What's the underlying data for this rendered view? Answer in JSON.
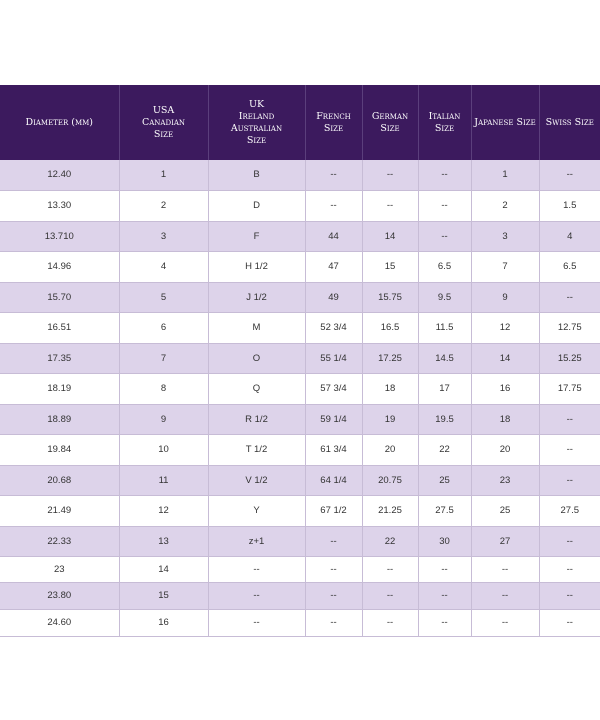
{
  "headers": [
    "Diameter (mm)",
    "USA\nCanadian\nSize",
    "UK\nIreland\nAustralian\nSize",
    "French\nSize",
    "German\nSize",
    "Italian\nSize",
    "Japanese Size",
    "Swiss Size"
  ],
  "rows": [
    [
      "12.40",
      "1",
      "B",
      "--",
      "--",
      "--",
      "1",
      "--"
    ],
    [
      "13.30",
      "2",
      "D",
      "--",
      "--",
      "--",
      "2",
      "1.5"
    ],
    [
      "13.710",
      "3",
      "F",
      "44",
      "14",
      "--",
      "3",
      "4"
    ],
    [
      "14.96",
      "4",
      "H 1/2",
      "47",
      "15",
      "6.5",
      "7",
      "6.5"
    ],
    [
      "15.70",
      "5",
      "J 1/2",
      "49",
      "15.75",
      "9.5",
      "9",
      "--"
    ],
    [
      "16.51",
      "6",
      "M",
      "52 3/4",
      "16.5",
      "11.5",
      "12",
      "12.75"
    ],
    [
      "17.35",
      "7",
      "O",
      "55 1/4",
      "17.25",
      "14.5",
      "14",
      "15.25"
    ],
    [
      "18.19",
      "8",
      "Q",
      "57 3/4",
      "18",
      "17",
      "16",
      "17.75"
    ],
    [
      "18.89",
      "9",
      "R 1/2",
      "59 1/4",
      "19",
      "19.5",
      "18",
      "--"
    ],
    [
      "19.84",
      "10",
      "T 1/2",
      "61 3/4",
      "20",
      "22",
      "20",
      "--"
    ],
    [
      "20.68",
      "11",
      "V 1/2",
      "64 1/4",
      "20.75",
      "25",
      "23",
      "--"
    ],
    [
      "21.49",
      "12",
      "Y",
      "67 1/2",
      "21.25",
      "27.5",
      "25",
      "27.5"
    ],
    [
      "22.33",
      "13",
      "z+1",
      "--",
      "22",
      "30",
      "27",
      "--"
    ],
    [
      "23",
      "14",
      "--",
      "--",
      "--",
      "--",
      "--",
      "--"
    ],
    [
      "23.80",
      "15",
      "--",
      "--",
      "--",
      "--",
      "--",
      "--"
    ],
    [
      "24.60",
      "16",
      "--",
      "--",
      "--",
      "--",
      "--",
      "--"
    ]
  ],
  "colors": {
    "header_bg": "#3c1a5e",
    "header_text": "#ffffff",
    "row_shade": "#ddd3ea",
    "row_plain": "#ffffff",
    "grid": "#c7bcd6"
  }
}
